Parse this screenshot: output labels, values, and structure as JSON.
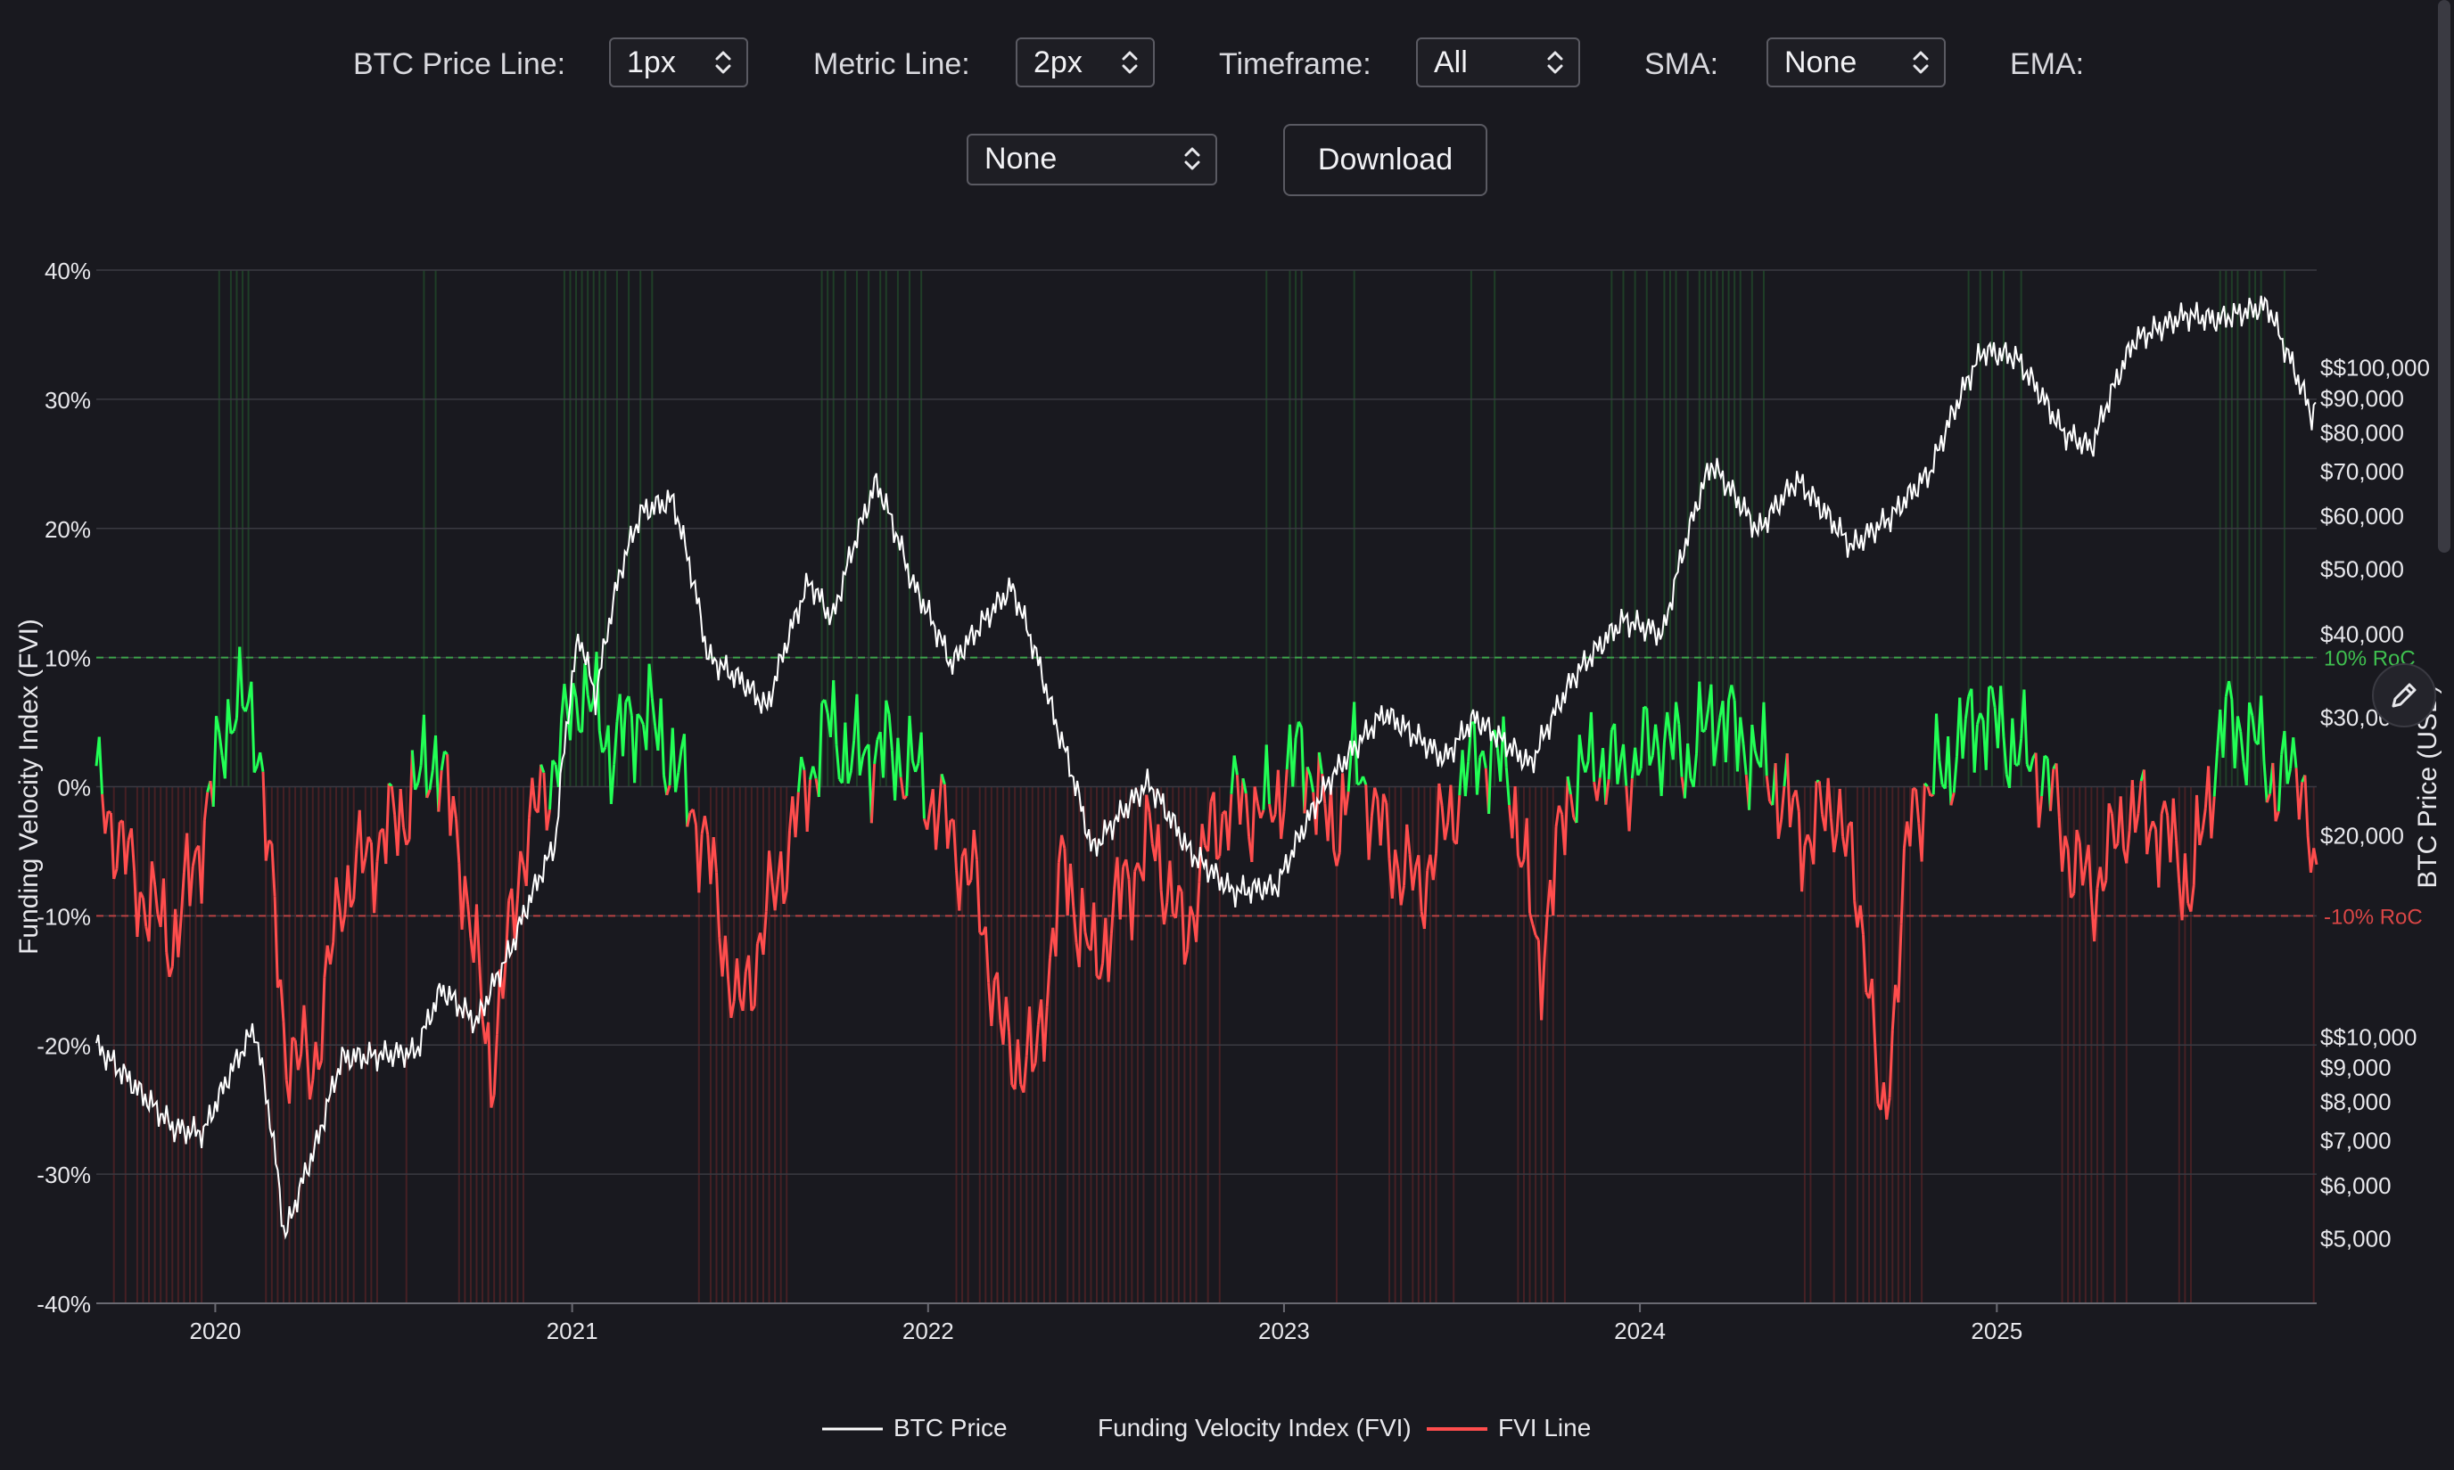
{
  "controls": {
    "btc_price_line": {
      "label": "BTC Price Line:",
      "value": "1px"
    },
    "metric_line": {
      "label": "Metric Line:",
      "value": "2px"
    },
    "timeframe": {
      "label": "Timeframe:",
      "value": "All"
    },
    "sma": {
      "label": "SMA:",
      "value": "None"
    },
    "ema": {
      "label": "EMA:",
      "value": "None"
    },
    "download_label": "Download"
  },
  "colors": {
    "background": "#19191f",
    "price_line": "#ffffff",
    "fvi_positive": "#22ff55",
    "fvi_negative": "#ff4d4d",
    "threshold_positive": "#2e9e3e",
    "threshold_negative": "#b93434"
  },
  "icons": {
    "select_caret": "updown-chevron-icon",
    "edit": "pencil-icon"
  },
  "chart_data": {
    "type": "line",
    "left_axis": {
      "label": "Funding Velocity Index (FVI)",
      "ticks": [
        "40%",
        "30%",
        "20%",
        "10%",
        "0%",
        "-10%",
        "-20%",
        "-30%",
        "-40%"
      ],
      "range": [
        -40,
        40
      ]
    },
    "right_axis": {
      "label": "BTC Price (USD)",
      "scale": "log",
      "range": [
        4000,
        140000
      ],
      "ticks": [
        {
          "value": 5000,
          "label": "$5,000"
        },
        {
          "value": 6000,
          "label": "$6,000"
        },
        {
          "value": 7000,
          "label": "$7,000"
        },
        {
          "value": 8000,
          "label": "$8,000"
        },
        {
          "value": 9000,
          "label": "$9,000"
        },
        {
          "value": 10000,
          "label": "$$10,000"
        },
        {
          "value": 20000,
          "label": "$20,000"
        },
        {
          "value": 30000,
          "label": "$30,000"
        },
        {
          "value": 40000,
          "label": "$40,000"
        },
        {
          "value": 50000,
          "label": "$50,000"
        },
        {
          "value": 60000,
          "label": "$60,000"
        },
        {
          "value": 70000,
          "label": "$70,000"
        },
        {
          "value": 80000,
          "label": "$80,000"
        },
        {
          "value": 90000,
          "label": "$90,000"
        },
        {
          "value": 100000,
          "label": "$$100,000"
        }
      ]
    },
    "x_axis": {
      "ticks": [
        "2020",
        "2021",
        "2022",
        "2023",
        "2024",
        "2025"
      ],
      "range": [
        "2019-09-01",
        "2025-11-25"
      ]
    },
    "thresholds": [
      {
        "value": 10,
        "label": "10% RoC"
      },
      {
        "value": -10,
        "label": "-10% RoC"
      }
    ],
    "legend": [
      "BTC Price",
      "Funding Velocity Index (FVI)",
      "FVI Line"
    ],
    "series": [
      {
        "name": "BTC Price",
        "x": [
          "2019-09-01",
          "2019-10-15",
          "2019-11-20",
          "2019-12-20",
          "2020-02-10",
          "2020-03-12",
          "2020-04-15",
          "2020-05-10",
          "2020-06-20",
          "2020-07-25",
          "2020-08-20",
          "2020-09-25",
          "2020-10-30",
          "2020-12-15",
          "2021-01-08",
          "2021-01-25",
          "2021-02-20",
          "2021-03-13",
          "2021-04-14",
          "2021-05-20",
          "2021-06-25",
          "2021-07-20",
          "2021-09-01",
          "2021-09-25",
          "2021-11-09",
          "2021-12-15",
          "2022-01-25",
          "2022-03-28",
          "2022-05-10",
          "2022-06-18",
          "2022-08-15",
          "2022-09-25",
          "2022-11-09",
          "2022-12-25",
          "2023-02-15",
          "2023-04-14",
          "2023-06-15",
          "2023-07-15",
          "2023-09-11",
          "2023-10-25",
          "2023-12-15",
          "2024-01-25",
          "2024-03-14",
          "2024-05-01",
          "2024-06-10",
          "2024-08-05",
          "2024-09-15",
          "2024-10-25",
          "2024-12-17",
          "2025-01-20",
          "2025-03-10",
          "2025-04-08",
          "2025-05-22",
          "2025-07-14",
          "2025-08-15",
          "2025-10-06",
          "2025-10-20",
          "2025-11-21",
          "2025-11-25"
        ],
        "values": [
          9700,
          8300,
          7300,
          7200,
          10300,
          5000,
          7000,
          9300,
          9400,
          9500,
          11800,
          10500,
          13500,
          19500,
          40000,
          32000,
          50000,
          61000,
          63500,
          37000,
          34000,
          31000,
          48000,
          42000,
          67500,
          48000,
          36000,
          47000,
          30000,
          19000,
          24000,
          19000,
          16500,
          16800,
          24000,
          30500,
          26000,
          30000,
          25500,
          34500,
          42000,
          40000,
          72000,
          57000,
          68000,
          54000,
          60000,
          70000,
          106000,
          104000,
          80000,
          76000,
          110000,
          120000,
          118000,
          124000,
          110000,
          84000,
          91000
        ]
      },
      {
        "name": "FVI",
        "x": [
          "2019-09-01",
          "2019-10-15",
          "2019-11-20",
          "2019-12-20",
          "2020-01-20",
          "2020-02-15",
          "2020-03-12",
          "2020-04-10",
          "2020-05-10",
          "2020-06-20",
          "2020-07-20",
          "2020-08-15",
          "2020-09-10",
          "2020-10-10",
          "2020-11-10",
          "2020-12-15",
          "2021-01-10",
          "2021-02-10",
          "2021-03-15",
          "2021-04-20",
          "2021-05-20",
          "2021-06-20",
          "2021-07-20",
          "2021-08-20",
          "2021-09-20",
          "2021-10-15",
          "2021-11-20",
          "2021-12-20",
          "2022-01-20",
          "2022-02-20",
          "2022-03-20",
          "2022-04-20",
          "2022-05-20",
          "2022-06-20",
          "2022-07-20",
          "2022-08-20",
          "2022-09-20",
          "2022-10-20",
          "2022-11-15",
          "2022-12-15",
          "2023-01-20",
          "2023-02-20",
          "2023-03-15",
          "2023-04-20",
          "2023-05-20",
          "2023-06-20",
          "2023-07-20",
          "2023-08-20",
          "2023-09-20",
          "2023-10-20",
          "2023-11-20",
          "2023-12-20",
          "2024-01-20",
          "2024-02-20",
          "2024-03-20",
          "2024-04-20",
          "2024-05-20",
          "2024-06-20",
          "2024-07-20",
          "2024-08-20",
          "2024-09-05",
          "2024-10-05",
          "2024-11-15",
          "2024-12-15",
          "2025-01-20",
          "2025-02-20",
          "2025-03-20",
          "2025-04-10",
          "2025-05-15",
          "2025-06-20",
          "2025-07-20",
          "2025-08-20",
          "2025-09-20",
          "2025-10-15",
          "2025-11-10",
          "2025-11-25"
        ],
        "values": [
          0,
          -8,
          -12,
          -3,
          7,
          4,
          -20,
          -22,
          -8,
          -4,
          -1,
          3,
          -6,
          -22,
          -5,
          2,
          8,
          3,
          6,
          1,
          -5,
          -18,
          -10,
          -2,
          5,
          2,
          3,
          1,
          -3,
          -8,
          -20,
          -22,
          -6,
          -14,
          -8,
          -4,
          -12,
          -3,
          -1,
          -2,
          3,
          -4,
          2,
          -5,
          -8,
          -2,
          3,
          1,
          -14,
          0,
          2,
          1,
          4,
          2,
          6,
          3,
          0,
          -4,
          -1,
          -12,
          -28,
          -2,
          2,
          6,
          3,
          1,
          -6,
          -8,
          -2,
          -3,
          -8,
          5,
          4,
          0,
          2,
          -10
        ]
      }
    ]
  }
}
